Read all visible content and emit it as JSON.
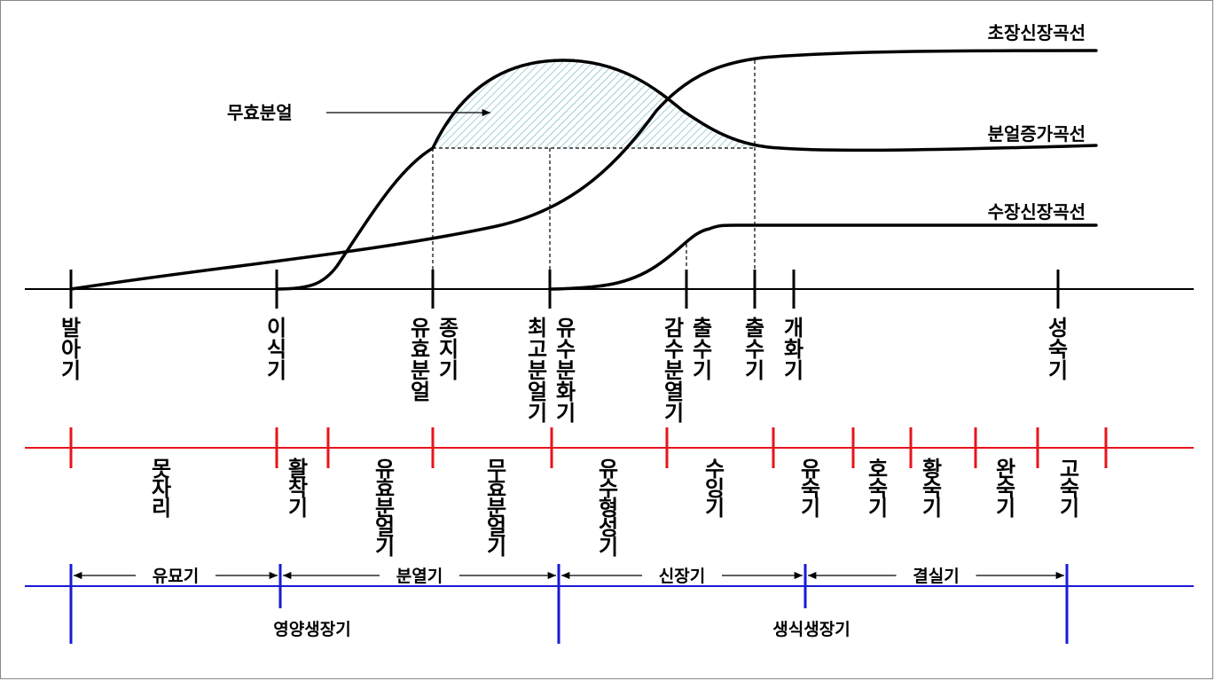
{
  "colors": {
    "main_axis": "#000000",
    "stage_axis": "#e8131b",
    "period_axis": "#1a1ad6",
    "hatch": "#6fb7b7"
  },
  "curves": {
    "stem_elongation": "초장신장곡선",
    "tiller_increase": "분얼증가곡선",
    "panicle_elongation": "수장신장곡선",
    "ineffective_tillering": "무효분얼"
  },
  "main_axis_labels": [
    [
      "발아기"
    ],
    [
      "이식기"
    ],
    [
      "유효분얼",
      "종지기"
    ],
    [
      "최고분얼기",
      "유수분화기"
    ],
    [
      "감수분열기",
      "출수기"
    ],
    [
      "출수기"
    ],
    [
      "개화기"
    ],
    [
      "성숙기"
    ]
  ],
  "stage_labels": [
    "못자리",
    "활착기",
    "유효분얼기",
    "무효분얼기",
    "유수형성기",
    "수잉기",
    "유숙기",
    "호숙기",
    "황숙기",
    "완숙기",
    "고숙기"
  ],
  "periods": {
    "spans": [
      "유묘기",
      "분열기",
      "신장기",
      "결실기"
    ],
    "phases": [
      "영양생장기",
      "생식생장기"
    ]
  }
}
